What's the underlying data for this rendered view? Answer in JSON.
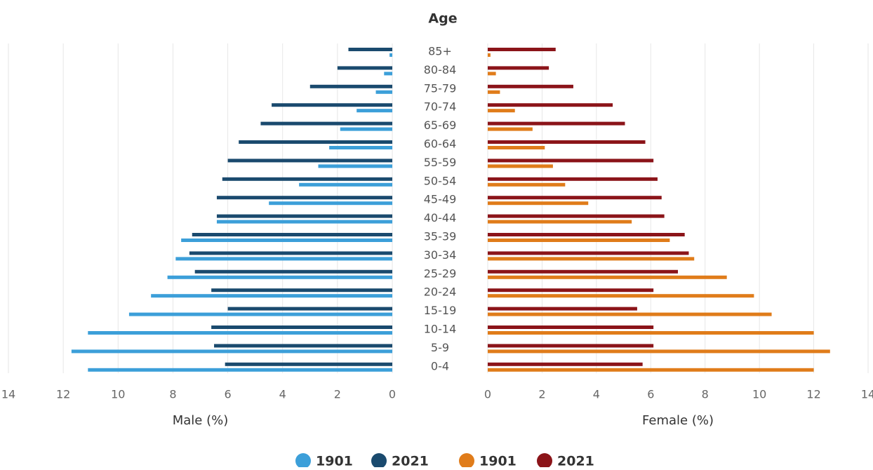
{
  "chart_data": {
    "type": "pyramid",
    "title": "Age",
    "categories": [
      "85+",
      "80-84",
      "75-79",
      "70-74",
      "65-69",
      "60-64",
      "55-59",
      "50-54",
      "45-49",
      "40-44",
      "35-39",
      "30-34",
      "25-29",
      "20-24",
      "15-19",
      "10-14",
      "5-9",
      "0-4"
    ],
    "grid": true,
    "left": {
      "xlabel": "Male (%)",
      "xlim": [
        0,
        14
      ],
      "xticks": [
        0,
        2,
        4,
        6,
        8,
        10,
        12,
        14
      ],
      "series": [
        {
          "name": "1901",
          "color": "#3c9fd9",
          "values": [
            0.1,
            0.3,
            0.6,
            1.3,
            1.9,
            2.3,
            2.7,
            3.4,
            4.5,
            6.4,
            7.7,
            7.9,
            8.2,
            8.8,
            9.6,
            11.1,
            11.7,
            11.1
          ]
        },
        {
          "name": "2021",
          "color": "#1a4a6e",
          "values": [
            1.6,
            2.0,
            3.0,
            4.4,
            4.8,
            5.6,
            6.0,
            6.2,
            6.4,
            6.4,
            7.3,
            7.4,
            7.2,
            6.6,
            6.0,
            6.6,
            6.5,
            6.1
          ]
        }
      ]
    },
    "right": {
      "xlabel": "Female (%)",
      "xlim": [
        0,
        14
      ],
      "xticks": [
        0,
        2,
        4,
        6,
        8,
        10,
        12,
        14
      ],
      "series": [
        {
          "name": "1901",
          "color": "#e07c1a",
          "values": [
            0.1,
            0.3,
            0.45,
            1.0,
            1.65,
            2.1,
            2.4,
            2.85,
            3.7,
            5.3,
            6.7,
            7.6,
            8.8,
            9.8,
            10.45,
            12.0,
            12.6,
            12.0
          ]
        },
        {
          "name": "2021",
          "color": "#8b1419",
          "values": [
            2.5,
            2.25,
            3.15,
            4.6,
            5.05,
            5.8,
            6.1,
            6.25,
            6.4,
            6.5,
            7.25,
            7.4,
            7.0,
            6.1,
            5.5,
            6.1,
            6.1,
            5.7
          ]
        }
      ]
    }
  }
}
